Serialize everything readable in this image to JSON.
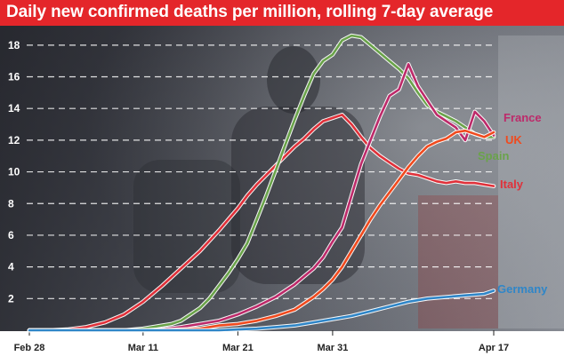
{
  "title": "Daily new confirmed deaths per million, rolling 7-day average",
  "colors": {
    "title_bg": "#e4262a"
  },
  "chart_data": {
    "type": "line",
    "title": "Daily new confirmed deaths per million, rolling 7-day average",
    "xlabel": "",
    "ylabel": "",
    "x_ticks": [
      "Feb 28",
      "Mar 11",
      "Mar 21",
      "Mar 31",
      "Apr 17"
    ],
    "x_tick_days": [
      0,
      12,
      22,
      32,
      49
    ],
    "xlim": [
      0,
      49
    ],
    "y_ticks": [
      2,
      4,
      6,
      8,
      10,
      12,
      14,
      16,
      18
    ],
    "ylim": [
      0,
      19
    ],
    "grid": "dashed-horizontal",
    "legend": "labels at line ends (right)",
    "series": [
      {
        "name": "Italy",
        "color": "#e0313a",
        "x": [
          0,
          2,
          4,
          6,
          8,
          10,
          12,
          14,
          16,
          18,
          20,
          22,
          23,
          24,
          25,
          26,
          27,
          28,
          29,
          30,
          31,
          32,
          33,
          34,
          35,
          36,
          37,
          38,
          39,
          40,
          41,
          42,
          43,
          44,
          45,
          46,
          47,
          48,
          49
        ],
        "y": [
          0,
          0,
          0.05,
          0.2,
          0.5,
          1.0,
          1.8,
          2.8,
          3.9,
          5.0,
          6.3,
          7.7,
          8.5,
          9.2,
          9.8,
          10.4,
          11.0,
          11.6,
          12.1,
          12.7,
          13.2,
          13.4,
          13.6,
          13.0,
          12.2,
          11.5,
          11.0,
          10.6,
          10.2,
          9.9,
          9.8,
          9.6,
          9.4,
          9.3,
          9.4,
          9.3,
          9.3,
          9.2,
          9.1
        ]
      },
      {
        "name": "Spain",
        "color": "#6aa34a",
        "x": [
          0,
          10,
          12,
          13,
          14,
          15,
          16,
          17,
          18,
          19,
          20,
          21,
          22,
          23,
          24,
          25,
          26,
          27,
          28,
          29,
          30,
          31,
          32,
          33,
          34,
          35,
          36,
          37,
          38,
          39,
          40,
          41,
          42,
          43,
          44,
          45,
          46,
          47,
          48,
          49
        ],
        "y": [
          0,
          0,
          0.1,
          0.2,
          0.3,
          0.4,
          0.6,
          1.0,
          1.4,
          2.0,
          2.8,
          3.6,
          4.5,
          5.5,
          7.0,
          8.5,
          10.1,
          11.7,
          13.3,
          14.8,
          16.2,
          17.0,
          17.4,
          18.3,
          18.6,
          18.5,
          18.0,
          17.5,
          17.0,
          16.5,
          15.9,
          15.0,
          14.2,
          13.8,
          13.5,
          13.2,
          12.8,
          12.4,
          12.2,
          12.2
        ]
      },
      {
        "name": "France",
        "color": "#bd2a6a",
        "x": [
          0,
          12,
          14,
          16,
          18,
          20,
          22,
          24,
          26,
          28,
          29,
          30,
          31,
          32,
          33,
          34,
          35,
          36,
          37,
          38,
          39,
          40,
          41,
          42,
          43,
          44,
          45,
          46,
          47,
          48,
          49
        ],
        "y": [
          0,
          0,
          0.05,
          0.2,
          0.4,
          0.6,
          1.0,
          1.5,
          2.1,
          2.9,
          3.4,
          3.9,
          4.6,
          5.6,
          6.5,
          8.5,
          10.5,
          12.0,
          13.5,
          14.8,
          15.2,
          16.8,
          15.4,
          14.5,
          13.6,
          13.2,
          12.8,
          12.0,
          13.8,
          13.2,
          12.3
        ]
      },
      {
        "name": "UK",
        "color": "#f04a1e",
        "x": [
          0,
          14,
          16,
          18,
          20,
          22,
          24,
          26,
          28,
          29,
          30,
          31,
          32,
          33,
          34,
          35,
          36,
          37,
          38,
          39,
          40,
          41,
          42,
          43,
          44,
          45,
          46,
          47,
          48,
          49
        ],
        "y": [
          0,
          0,
          0.05,
          0.1,
          0.3,
          0.4,
          0.6,
          0.9,
          1.3,
          1.7,
          2.1,
          2.6,
          3.2,
          4.0,
          5.0,
          6.0,
          7.0,
          7.9,
          8.7,
          9.5,
          10.3,
          11.0,
          11.6,
          11.9,
          12.1,
          12.5,
          12.6,
          12.4,
          12.2,
          12.5
        ]
      },
      {
        "name": "Germany",
        "color": "#2f86c8",
        "x": [
          0,
          20,
          22,
          24,
          26,
          28,
          30,
          32,
          34,
          36,
          38,
          40,
          42,
          44,
          46,
          48,
          49
        ],
        "y": [
          0,
          0,
          0.05,
          0.1,
          0.2,
          0.3,
          0.5,
          0.7,
          0.9,
          1.2,
          1.5,
          1.8,
          2.0,
          2.1,
          2.2,
          2.3,
          2.5
        ]
      }
    ]
  }
}
